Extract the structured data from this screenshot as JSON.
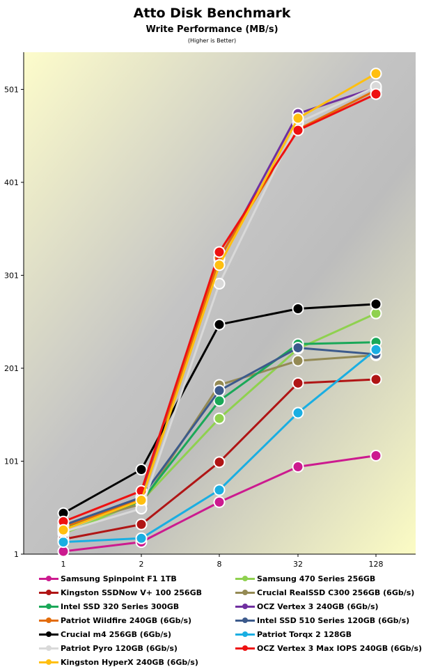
{
  "chart_data": {
    "type": "line",
    "title": "Atto Disk Benchmark",
    "subtitle": "Write Performance (MB/s)",
    "note": "(Higher is Better)",
    "xlabel": "",
    "ylabel": "",
    "categories": [
      "1",
      "2",
      "8",
      "32",
      "128"
    ],
    "ylim": [
      1,
      541
    ],
    "yticks": [
      1,
      101,
      201,
      301,
      401,
      501
    ],
    "grid": false,
    "legend_position": "bottom",
    "series": [
      {
        "name": "Samsung Spinpoint F1 1TB",
        "color": "#cc1a8f",
        "values": [
          4,
          14,
          57,
          95,
          107
        ]
      },
      {
        "name": "Samsung 470 Series 256GB",
        "color": "#8fd14f",
        "values": [
          23,
          58,
          147,
          222,
          260
        ]
      },
      {
        "name": "Kingston SSDNow V+ 100 256GB",
        "color": "#b01515",
        "values": [
          17,
          33,
          100,
          185,
          189
        ]
      },
      {
        "name": "Crucial RealSSD C300 256GB (6Gb/s)",
        "color": "#948a54",
        "values": [
          31,
          55,
          183,
          209,
          215
        ]
      },
      {
        "name": "Intel SSD 320 Series 300GB",
        "color": "#1aa858",
        "values": [
          29,
          58,
          166,
          227,
          229
        ]
      },
      {
        "name": "OCZ Vertex 3 240GB (6Gb/s)",
        "color": "#7030a0",
        "values": [
          32,
          62,
          318,
          475,
          503
        ]
      },
      {
        "name": "Patriot Wildfire 240GB (6Gb/s)",
        "color": "#e36c0a",
        "values": [
          30,
          60,
          320,
          458,
          500
        ]
      },
      {
        "name": "Intel SSD 510 Series 120GB (6Gb/s)",
        "color": "#3c5a8c",
        "values": [
          32,
          62,
          177,
          223,
          216
        ]
      },
      {
        "name": "Crucial m4 256GB (6Gb/s)",
        "color": "#000000",
        "values": [
          45,
          92,
          248,
          265,
          270
        ]
      },
      {
        "name": "Patriot Torqx 2 128GB",
        "color": "#1aaee2",
        "values": [
          14,
          18,
          70,
          153,
          221
        ]
      },
      {
        "name": "Patriot Pyro 120GB (6Gb/s)",
        "color": "#d9d9d9",
        "values": [
          25,
          50,
          292,
          465,
          504
        ]
      },
      {
        "name": "OCZ Vertex 3 Max IOPS 240GB (6Gb/s)",
        "color": "#ee1111",
        "values": [
          36,
          69,
          326,
          457,
          496
        ]
      },
      {
        "name": "Kingston HyperX 240GB (6Gb/s)",
        "color": "#ffbf10",
        "values": [
          27,
          59,
          312,
          470,
          518
        ]
      }
    ]
  }
}
